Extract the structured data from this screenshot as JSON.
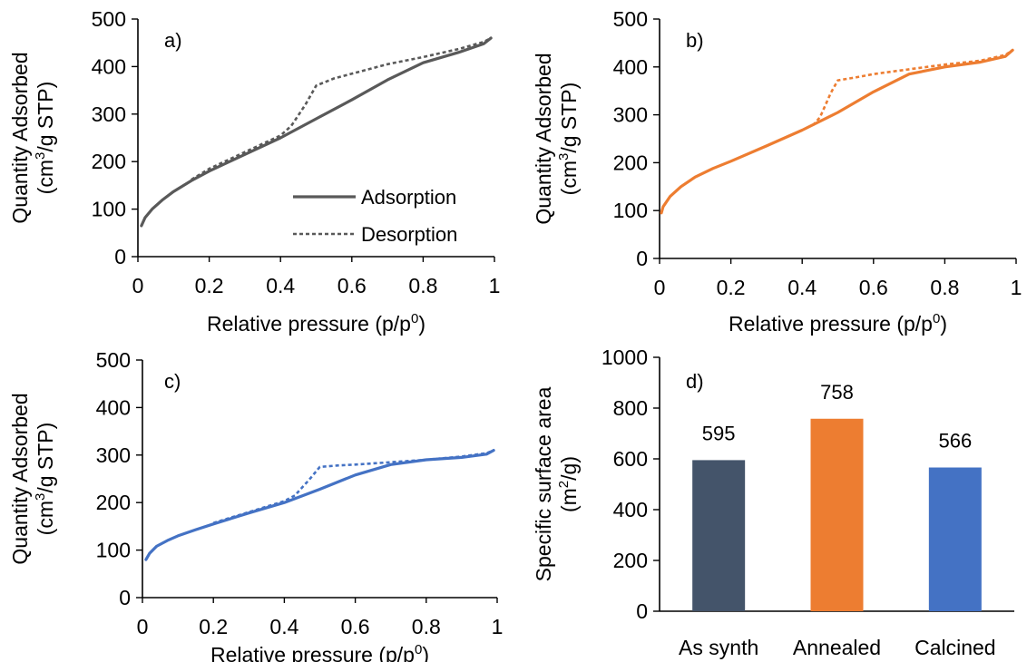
{
  "chart_data": [
    {
      "id": "a",
      "type": "line",
      "panel_label": "a)",
      "xlabel": "Relative pressure (p/p",
      "xlabel_sup": "0",
      "xlabel_end": ")",
      "ylabel": "Quantity Adsorbed",
      "ylabel2": "(cm",
      "ylabel2_sup": "3",
      "ylabel2_end": "/g STP)",
      "xlim": [
        0,
        1
      ],
      "ylim": [
        0,
        500
      ],
      "xticks": [
        "0",
        "0.2",
        "0.4",
        "0.6",
        "0.8",
        "1"
      ],
      "yticks": [
        "0",
        "100",
        "200",
        "300",
        "400",
        "500"
      ],
      "legend": [
        "Adsorption",
        "Desorption"
      ],
      "legend_position": "bottom-right",
      "color": "#595959",
      "series": [
        {
          "name": "Adsorption",
          "style": "solid",
          "x": [
            0.01,
            0.02,
            0.04,
            0.07,
            0.1,
            0.15,
            0.2,
            0.3,
            0.4,
            0.5,
            0.6,
            0.7,
            0.8,
            0.9,
            0.97,
            0.99
          ],
          "y": [
            65,
            82,
            100,
            120,
            137,
            160,
            180,
            215,
            250,
            290,
            330,
            372,
            408,
            430,
            448,
            460
          ]
        },
        {
          "name": "Desorption",
          "style": "dashed",
          "x": [
            0.15,
            0.2,
            0.3,
            0.4,
            0.43,
            0.47,
            0.5,
            0.55,
            0.6,
            0.7,
            0.8,
            0.9,
            0.97,
            0.99
          ],
          "y": [
            162,
            185,
            220,
            255,
            275,
            320,
            360,
            375,
            385,
            405,
            420,
            437,
            452,
            460
          ]
        }
      ]
    },
    {
      "id": "b",
      "type": "line",
      "panel_label": "b)",
      "xlabel": "Relative pressure (p/p",
      "xlabel_sup": "0",
      "xlabel_end": ")",
      "ylabel": "Quantity Adsorbed",
      "ylabel2": "(cm",
      "ylabel2_sup": "3",
      "ylabel2_end": "/g STP)",
      "xlim": [
        0,
        1
      ],
      "ylim": [
        0,
        500
      ],
      "xticks": [
        "0",
        "0.2",
        "0.4",
        "0.6",
        "0.8",
        "1"
      ],
      "yticks": [
        "0",
        "100",
        "200",
        "300",
        "400",
        "500"
      ],
      "color": "#ed7d31",
      "series": [
        {
          "style": "solid",
          "x": [
            0.005,
            0.01,
            0.03,
            0.06,
            0.1,
            0.15,
            0.2,
            0.3,
            0.4,
            0.5,
            0.6,
            0.7,
            0.8,
            0.9,
            0.97,
            0.99
          ],
          "y": [
            95,
            108,
            130,
            150,
            170,
            188,
            203,
            235,
            268,
            305,
            348,
            385,
            400,
            410,
            422,
            435
          ]
        },
        {
          "style": "dashed",
          "x": [
            0.43,
            0.45,
            0.48,
            0.5,
            0.55,
            0.6,
            0.7,
            0.8,
            0.9,
            0.97,
            0.99
          ],
          "y": [
            278,
            295,
            345,
            372,
            378,
            385,
            395,
            405,
            413,
            425,
            435
          ]
        }
      ]
    },
    {
      "id": "c",
      "type": "line",
      "panel_label": "c)",
      "xlabel": "Relative pressure (p/p",
      "xlabel_sup": "0",
      "xlabel_end": ")",
      "ylabel": "Quantity Adsorbed",
      "ylabel2": "(cm",
      "ylabel2_sup": "3",
      "ylabel2_end": "/g STP)",
      "xlim": [
        0,
        1
      ],
      "ylim": [
        0,
        500
      ],
      "xticks": [
        "0",
        "0.2",
        "0.4",
        "0.6",
        "0.8",
        "1"
      ],
      "yticks": [
        "0",
        "100",
        "200",
        "300",
        "400",
        "500"
      ],
      "color": "#4472c4",
      "series": [
        {
          "style": "solid",
          "x": [
            0.01,
            0.02,
            0.04,
            0.07,
            0.1,
            0.15,
            0.2,
            0.3,
            0.4,
            0.5,
            0.6,
            0.7,
            0.8,
            0.9,
            0.97,
            0.99
          ],
          "y": [
            80,
            93,
            108,
            120,
            130,
            143,
            155,
            178,
            200,
            228,
            258,
            280,
            290,
            295,
            302,
            310
          ]
        },
        {
          "style": "dashed",
          "x": [
            0.2,
            0.3,
            0.4,
            0.43,
            0.47,
            0.5,
            0.55,
            0.6,
            0.7,
            0.8,
            0.9,
            0.97,
            0.99
          ],
          "y": [
            157,
            180,
            203,
            215,
            248,
            275,
            278,
            280,
            285,
            290,
            297,
            304,
            310
          ]
        }
      ]
    },
    {
      "id": "d",
      "type": "bar",
      "panel_label": "d)",
      "ylabel": "Specific surface area",
      "ylabel2": "(m",
      "ylabel2_sup": "2",
      "ylabel2_end": "/g)",
      "ylim": [
        0,
        1000
      ],
      "yticks": [
        "0",
        "200",
        "400",
        "600",
        "800",
        "1000"
      ],
      "categories": [
        "As synth",
        "Annealed",
        "Calcined"
      ],
      "values": [
        595,
        758,
        566
      ],
      "labels": [
        "595",
        "758",
        "566"
      ],
      "colors": [
        "#44546a",
        "#ed7d31",
        "#4472c4"
      ]
    }
  ]
}
